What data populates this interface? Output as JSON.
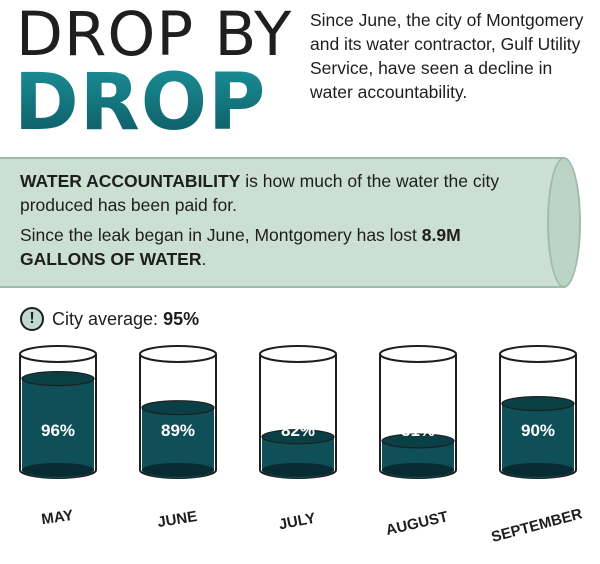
{
  "headline": {
    "line1": "DROP BY",
    "line2": "DROP"
  },
  "intro": "Since June, the city of Montgomery and its water contractor, Gulf Utility Service, have seen a decline in water accountability.",
  "pipe": {
    "term": "WATER ACCOUNTABILITY",
    "definition": " is how much of the water the city produced has been paid for.",
    "loss_text": "Since the leak began in June, Montgomery has lost ",
    "loss_value": "8.9M GALLONS OF WATER",
    "loss_end": "."
  },
  "average": {
    "label": "City average: ",
    "value": "95%"
  },
  "colors": {
    "water": "#0e4f58",
    "water_dark": "#082c31",
    "glass": "#ffffff",
    "pipe": "#cbe0d3",
    "headline_teal": "#126d76"
  },
  "chart_data": {
    "type": "bar",
    "categories": [
      "MAY",
      "JUNE",
      "JULY",
      "AUGUST",
      "SEPTEMBER"
    ],
    "values": [
      96,
      89,
      82,
      81,
      90
    ],
    "value_labels": [
      "96%",
      "89%",
      "82%",
      "81%",
      "90%"
    ],
    "ylim": [
      0,
      100
    ]
  }
}
